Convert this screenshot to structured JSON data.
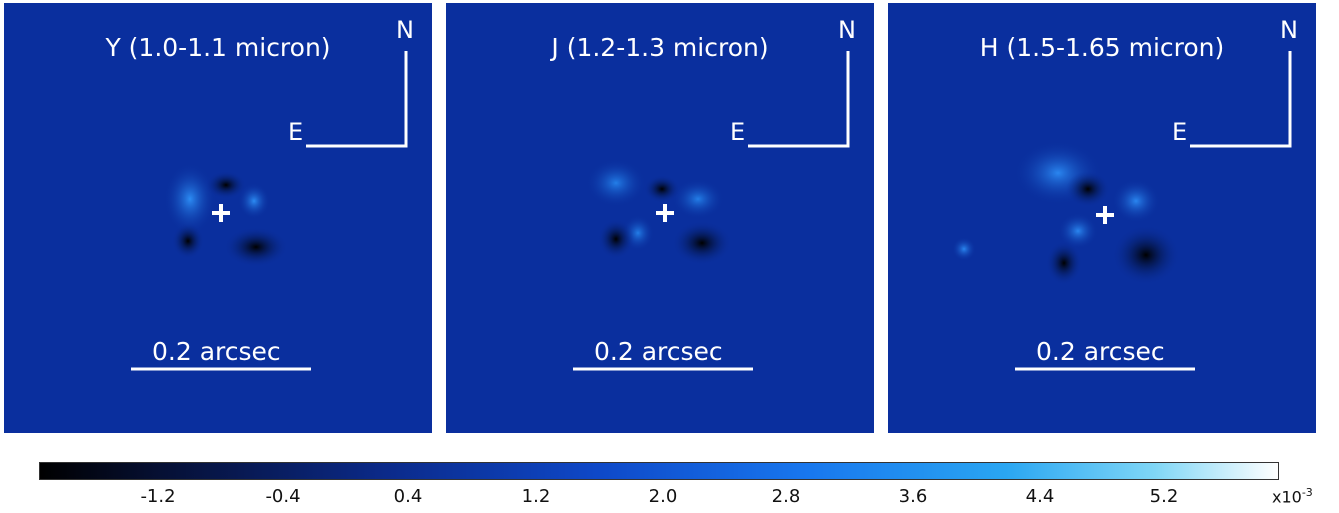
{
  "panels": [
    {
      "title": "Y (1.0-1.1 micron)",
      "north": "N",
      "east": "E",
      "scale_label": "0.2 arcsec"
    },
    {
      "title": "J (1.2-1.3 micron)",
      "north": "N",
      "east": "E",
      "scale_label": "0.2 arcsec"
    },
    {
      "title": "H (1.5-1.65 micron)",
      "north": "N",
      "east": "E",
      "scale_label": "0.2 arcsec"
    }
  ],
  "colorbar": {
    "ticks": [
      "-1.2",
      "-0.4",
      "0.4",
      "1.2",
      "2.0",
      "2.8",
      "3.6",
      "4.4",
      "5.2"
    ],
    "multiplier_base": "x10",
    "multiplier_exp": "-3",
    "colors": [
      "#000000",
      "#0b2a8a",
      "#0e48c8",
      "#1877ee",
      "#2aa6f2",
      "#ffffff"
    ]
  },
  "background_color": "#0a2f9e"
}
